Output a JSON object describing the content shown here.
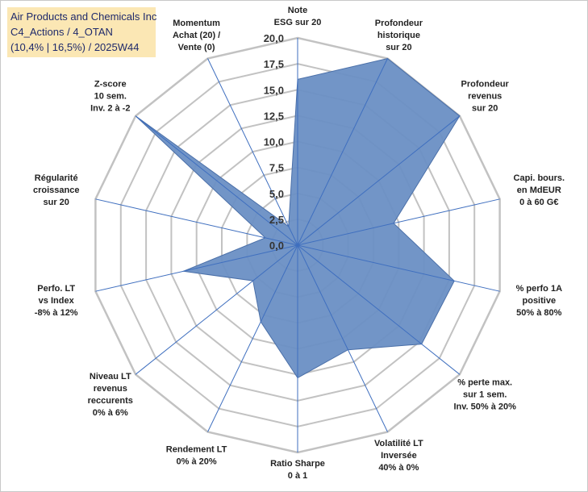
{
  "title": {
    "line1": "Air Products and Chemicals Inc",
    "line2": "C4_Actions / 4_OTAN",
    "line3": "(10,4% | 16,5%) / 2025W44"
  },
  "chart_data": {
    "type": "radar",
    "rmin": 0,
    "rmax": 20,
    "ticks": [
      "0,0",
      "2,5",
      "5,0",
      "7,5",
      "10,0",
      "12,5",
      "15,0",
      "17,5",
      "20,0"
    ],
    "axes": [
      {
        "label": [
          "Note",
          "ESG sur 20"
        ],
        "value": 16.0
      },
      {
        "label": [
          "Profondeur",
          "historique",
          "sur 20"
        ],
        "value": 20.0
      },
      {
        "label": [
          "Profondeur",
          "revenus",
          "sur 20"
        ],
        "value": 20.0
      },
      {
        "label": [
          "Capi. bours.",
          "en MdEUR",
          "0 à 60 G€"
        ],
        "value": 9.5
      },
      {
        "label": [
          "% perfo 1A",
          "positive",
          "50% à 80%"
        ],
        "value": 15.5
      },
      {
        "label": [
          "% perte max.",
          "sur 1 sem.",
          "Inv. 50% à 20%"
        ],
        "value": 15.3
      },
      {
        "label": [
          "Volatilité LT",
          "Inversée",
          "40% à 0%"
        ],
        "value": 11.2
      },
      {
        "label": [
          "Ratio Sharpe",
          "0 à 1"
        ],
        "value": 12.8
      },
      {
        "label": [
          "Rendement LT",
          "0% à 20%"
        ],
        "value": 8.2
      },
      {
        "label": [
          "Niveau LT",
          "revenus",
          "reccurents",
          "0% à 6%"
        ],
        "value": 5.5
      },
      {
        "label": [
          "Perfo. LT",
          "vs Index",
          "-8% à 12%"
        ],
        "value": 11.3
      },
      {
        "label": [
          "Régularité",
          "croissance",
          "sur 20"
        ],
        "value": 3.2
      },
      {
        "label": [
          "Z-score",
          "10 sem.",
          "Inv. 2 à -2"
        ],
        "value": 20.0
      },
      {
        "label": [
          "Momentum",
          "Achat (20) /",
          "Vente (0)"
        ],
        "value": 2.0
      }
    ]
  },
  "colors": {
    "fill": "#6a8fc4",
    "stroke": "#4a6fa8",
    "grid": "#c2c2c2",
    "spoke": "#3f6fbf",
    "title_bg": "#fbe7b4",
    "title_text": "#1f2a6b"
  }
}
